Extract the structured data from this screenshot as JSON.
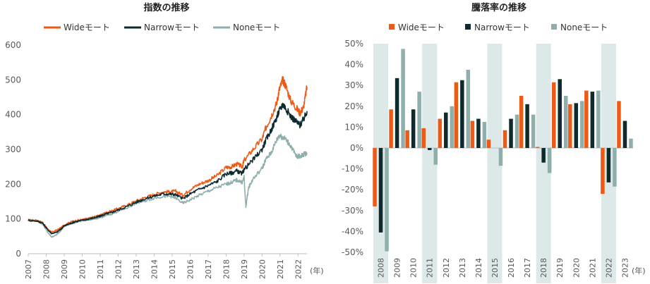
{
  "chart_data": [
    {
      "type": "line",
      "title": "指数の推移",
      "unit_label": "(年)",
      "ylim": [
        0,
        600
      ],
      "yticks": [
        0,
        100,
        200,
        300,
        400,
        500,
        600
      ],
      "xlim": [
        2007,
        2022.5
      ],
      "xticks": [
        "2007",
        "2008",
        "2009",
        "2010",
        "2011",
        "2012",
        "2013",
        "2014",
        "2015",
        "2016",
        "2017",
        "2018",
        "2019",
        "2020",
        "2021",
        "2022"
      ],
      "legend_position": "top-center",
      "series": [
        {
          "name": "Wideモート",
          "color": "#ED5A16",
          "x": [
            2007,
            2007.5,
            2007.8,
            2008.1,
            2008.3,
            2008.6,
            2008.8,
            2009,
            2009.3,
            2009.6,
            2010,
            2010.4,
            2010.8,
            2011,
            2011.3,
            2011.6,
            2012,
            2012.5,
            2013,
            2013.5,
            2014,
            2014.5,
            2014.9,
            2015.2,
            2015.6,
            2016,
            2016.5,
            2017,
            2017.5,
            2018,
            2018.3,
            2018.6,
            2018.9,
            2019,
            2019.5,
            2020,
            2020.2,
            2020.5,
            2020.8,
            2020.95,
            2021.15,
            2021.3,
            2021.6,
            2021.9,
            2022.1,
            2022.3,
            2022.5
          ],
          "y": [
            97,
            95,
            90,
            70,
            62,
            68,
            74,
            82,
            90,
            95,
            98,
            102,
            108,
            110,
            118,
            122,
            130,
            140,
            152,
            162,
            170,
            178,
            178,
            180,
            168,
            185,
            200,
            210,
            225,
            248,
            250,
            258,
            250,
            268,
            300,
            330,
            360,
            395,
            430,
            470,
            500,
            485,
            440,
            420,
            405,
            420,
            480
          ]
        },
        {
          "name": "Narrowモート",
          "color": "#0E2A2D",
          "x": [
            2007,
            2007.5,
            2007.8,
            2008.1,
            2008.3,
            2008.6,
            2008.8,
            2009,
            2009.3,
            2009.6,
            2010,
            2010.4,
            2010.8,
            2011,
            2011.3,
            2011.6,
            2012,
            2012.5,
            2013,
            2013.5,
            2014,
            2014.5,
            2014.9,
            2015.2,
            2015.6,
            2016,
            2016.5,
            2017,
            2017.5,
            2018,
            2018.3,
            2018.6,
            2018.9,
            2019,
            2019.5,
            2020,
            2020.2,
            2020.5,
            2020.8,
            2020.95,
            2021.15,
            2021.3,
            2021.6,
            2021.9,
            2022.1,
            2022.3,
            2022.5
          ],
          "y": [
            96,
            94,
            88,
            68,
            58,
            62,
            70,
            80,
            86,
            92,
            96,
            100,
            105,
            108,
            114,
            118,
            126,
            136,
            148,
            158,
            166,
            172,
            172,
            170,
            158,
            172,
            185,
            196,
            208,
            230,
            232,
            238,
            230,
            242,
            270,
            300,
            325,
            355,
            390,
            410,
            430,
            420,
            395,
            380,
            370,
            385,
            410
          ]
        },
        {
          "name": "Noneモート",
          "color": "#8FAFAC",
          "x": [
            2007,
            2007.5,
            2007.8,
            2008.1,
            2008.3,
            2008.6,
            2008.8,
            2009,
            2009.3,
            2009.6,
            2010,
            2010.4,
            2010.8,
            2011,
            2011.3,
            2011.6,
            2012,
            2012.5,
            2013,
            2013.5,
            2014,
            2014.5,
            2014.9,
            2015.2,
            2015.6,
            2016,
            2016.5,
            2017,
            2017.5,
            2018,
            2018.3,
            2018.6,
            2018.9,
            2019,
            2019.1,
            2019.25,
            2019.5,
            2020,
            2020.2,
            2020.5,
            2020.8,
            2020.95,
            2021.15,
            2021.3,
            2021.6,
            2021.9,
            2022.1,
            2022.3,
            2022.5
          ],
          "y": [
            98,
            95,
            85,
            60,
            48,
            55,
            66,
            78,
            85,
            90,
            95,
            98,
            102,
            103,
            110,
            114,
            122,
            132,
            145,
            152,
            160,
            165,
            165,
            160,
            145,
            155,
            168,
            180,
            190,
            200,
            205,
            212,
            205,
            220,
            135,
            190,
            215,
            245,
            270,
            290,
            325,
            340,
            335,
            330,
            310,
            280,
            280,
            285,
            290
          ]
        }
      ]
    },
    {
      "type": "bar",
      "title": "騰落率の推移",
      "ylim": [
        -50,
        50
      ],
      "yticks": [
        "-50%",
        "-40%",
        "-30%",
        "-20%",
        "-10%",
        "0%",
        "10%",
        "20%",
        "30%",
        "40%",
        "50%"
      ],
      "unit_label": "(年)",
      "legend_position": "top-center",
      "categories": [
        "2008",
        "2009",
        "2010",
        "2011",
        "2012",
        "2013",
        "2014",
        "2015",
        "2016",
        "2017",
        "2018",
        "2019",
        "2020",
        "2021",
        "2022",
        "2023"
      ],
      "shaded_categories": [
        "2008",
        "2011",
        "2015",
        "2018",
        "2022"
      ],
      "shade_color": "#DDE8E9",
      "series": [
        {
          "name": "Wideモート",
          "color": "#ED5A16",
          "values": [
            -28,
            18.5,
            8.5,
            9.5,
            14,
            31.5,
            13,
            4,
            8.5,
            25,
            0.5,
            31.5,
            21,
            27.5,
            -22,
            22.5
          ]
        },
        {
          "name": "Narrowモート",
          "color": "#0E2A2D",
          "values": [
            -40.5,
            33.5,
            18.5,
            -1,
            17,
            32.5,
            14,
            0,
            14,
            21,
            -7,
            33,
            21.5,
            27,
            -16.5,
            13
          ]
        },
        {
          "name": "Noneモート",
          "color": "#8FAFAC",
          "values": [
            -49.5,
            47.5,
            27,
            -8,
            20,
            37.5,
            12.5,
            -8.5,
            16,
            16,
            -12,
            25,
            22.5,
            27.5,
            -18.5,
            4.5
          ]
        }
      ]
    }
  ]
}
